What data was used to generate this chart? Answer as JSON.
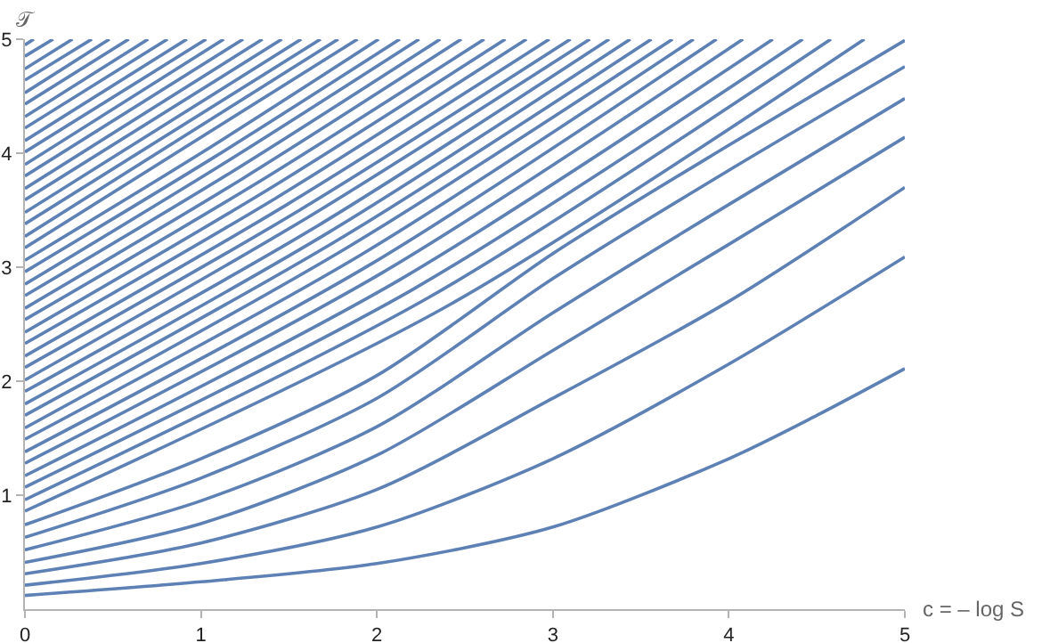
{
  "chart_data": {
    "type": "line",
    "xlabel": "c = – log S",
    "ylabel": "𝒯",
    "xlim": [
      0,
      5
    ],
    "ylim": [
      0,
      5
    ],
    "xticks": [
      0,
      1,
      2,
      3,
      4,
      5
    ],
    "yticks": [
      1,
      2,
      3,
      4,
      5
    ],
    "grid": false,
    "marker": "none",
    "line_style": "solid",
    "series": [
      {
        "color": "#5e81b5",
        "x": [
          0,
          1,
          2,
          3,
          4,
          4.5,
          5
        ],
        "values": [
          0.12,
          0.24,
          0.4,
          0.72,
          1.32,
          1.7,
          2.11
        ]
      },
      {
        "color": "#5e81b5",
        "x": [
          0,
          1,
          2,
          3,
          4,
          5
        ],
        "values": [
          0.21,
          0.4,
          0.72,
          1.32,
          2.15,
          3.09
        ]
      },
      {
        "color": "#5e81b5",
        "x": [
          0,
          1,
          2,
          3,
          4,
          5
        ],
        "values": [
          0.31,
          0.58,
          1.05,
          1.85,
          2.7,
          3.7
        ]
      },
      {
        "color": "#5e81b5",
        "x": [
          0,
          1,
          2,
          3,
          4,
          5
        ],
        "values": [
          0.41,
          0.75,
          1.35,
          2.27,
          3.2,
          4.14
        ]
      },
      {
        "color": "#5e81b5",
        "x": [
          0,
          1,
          2,
          3,
          4,
          5
        ],
        "values": [
          0.52,
          0.95,
          1.6,
          2.6,
          3.55,
          4.48
        ]
      },
      {
        "color": "#5e81b5",
        "x": [
          0,
          1,
          2,
          3,
          4,
          5
        ],
        "values": [
          0.63,
          1.15,
          1.85,
          2.9,
          3.85,
          4.76
        ]
      },
      {
        "color": "#5e81b5",
        "x": [
          0,
          1,
          2,
          3,
          4,
          5
        ],
        "values": [
          0.74,
          1.32,
          2.05,
          3.12,
          4.07,
          4.99
        ]
      },
      {
        "color": "#5e81b5",
        "x": [
          0,
          2.39,
          4.77
        ],
        "values": [
          0.86,
          2.65,
          5
        ]
      },
      {
        "color": "#5e81b5",
        "x": [
          0,
          2.29,
          4.58
        ],
        "values": [
          0.96,
          2.73,
          5
        ]
      },
      {
        "color": "#5e81b5",
        "x": [
          0,
          2.21,
          4.42
        ],
        "values": [
          1.07,
          2.81,
          5
        ]
      },
      {
        "color": "#5e81b5",
        "x": [
          0,
          2.13,
          4.25
        ],
        "values": [
          1.17,
          2.89,
          5
        ]
      },
      {
        "color": "#5e81b5",
        "x": [
          0,
          2.04,
          4.08
        ],
        "values": [
          1.28,
          2.96,
          5
        ]
      },
      {
        "color": "#5e81b5",
        "x": [
          0,
          1.97,
          3.93
        ],
        "values": [
          1.38,
          3.03,
          5
        ]
      },
      {
        "color": "#5e81b5",
        "x": [
          0,
          1.9,
          3.8
        ],
        "values": [
          1.49,
          3.1,
          5
        ]
      },
      {
        "color": "#5e81b5",
        "x": [
          0,
          1.84,
          3.68
        ],
        "values": [
          1.59,
          3.18,
          5
        ]
      },
      {
        "color": "#5e81b5",
        "x": [
          0,
          1.78,
          3.56
        ],
        "values": [
          1.7,
          3.24,
          5
        ]
      },
      {
        "color": "#5e81b5",
        "x": [
          0,
          1.72,
          3.44
        ],
        "values": [
          1.8,
          3.3,
          5
        ]
      },
      {
        "color": "#5e81b5",
        "x": [
          0,
          1.66,
          3.32
        ],
        "values": [
          1.91,
          3.36,
          5
        ]
      },
      {
        "color": "#5e81b5",
        "x": [
          0,
          1.6,
          3.21
        ],
        "values": [
          2.01,
          3.43,
          5
        ]
      },
      {
        "color": "#5e81b5",
        "x": [
          0,
          1.55,
          3.1
        ],
        "values": [
          2.12,
          3.49,
          5
        ]
      },
      {
        "color": "#5e81b5",
        "x": [
          0,
          1.49,
          2.98
        ],
        "values": [
          2.22,
          3.55,
          5
        ]
      },
      {
        "color": "#5e81b5",
        "x": [
          0,
          1.43,
          2.85
        ],
        "values": [
          2.33,
          3.61,
          5
        ]
      },
      {
        "color": "#5e81b5",
        "x": [
          0,
          1.37,
          2.73
        ],
        "values": [
          2.43,
          3.67,
          5
        ]
      },
      {
        "color": "#5e81b5",
        "x": [
          0,
          1.31,
          2.61
        ],
        "values": [
          2.54,
          3.73,
          5
        ]
      },
      {
        "color": "#5e81b5",
        "x": [
          0,
          1.24,
          2.48
        ],
        "values": [
          2.64,
          3.78,
          5
        ]
      },
      {
        "color": "#5e81b5",
        "x": [
          0,
          1.18,
          2.36
        ],
        "values": [
          2.75,
          3.84,
          5
        ]
      },
      {
        "color": "#5e81b5",
        "x": [
          0,
          1.12,
          2.24
        ],
        "values": [
          2.85,
          3.9,
          5
        ]
      },
      {
        "color": "#5e81b5",
        "x": [
          0,
          1.07,
          2.13
        ],
        "values": [
          2.96,
          3.96,
          5
        ]
      },
      {
        "color": "#5e81b5",
        "x": [
          0,
          1.01,
          2.01
        ],
        "values": [
          3.06,
          4.01,
          5
        ]
      },
      {
        "color": "#5e81b5",
        "x": [
          0,
          1.89
        ],
        "values": [
          3.17,
          5
        ]
      },
      {
        "color": "#5e81b5",
        "x": [
          0,
          1.78
        ],
        "values": [
          3.27,
          5
        ]
      },
      {
        "color": "#5e81b5",
        "x": [
          0,
          1.68
        ],
        "values": [
          3.38,
          5
        ]
      },
      {
        "color": "#5e81b5",
        "x": [
          0,
          1.57
        ],
        "values": [
          3.48,
          5
        ]
      },
      {
        "color": "#5e81b5",
        "x": [
          0,
          1.46
        ],
        "values": [
          3.59,
          5
        ]
      },
      {
        "color": "#5e81b5",
        "x": [
          0,
          1.35
        ],
        "values": [
          3.69,
          5
        ]
      },
      {
        "color": "#5e81b5",
        "x": [
          0,
          1.24
        ],
        "values": [
          3.8,
          5
        ]
      },
      {
        "color": "#5e81b5",
        "x": [
          0,
          1.13
        ],
        "values": [
          3.9,
          5
        ]
      },
      {
        "color": "#5e81b5",
        "x": [
          0,
          1.03
        ],
        "values": [
          4.01,
          5
        ]
      },
      {
        "color": "#5e81b5",
        "x": [
          0,
          0.92
        ],
        "values": [
          4.11,
          5
        ]
      },
      {
        "color": "#5e81b5",
        "x": [
          0,
          0.81
        ],
        "values": [
          4.22,
          5
        ]
      },
      {
        "color": "#5e81b5",
        "x": [
          0,
          0.7
        ],
        "values": [
          4.32,
          5
        ]
      },
      {
        "color": "#5e81b5",
        "x": [
          0,
          0.59
        ],
        "values": [
          4.43,
          5
        ]
      },
      {
        "color": "#5e81b5",
        "x": [
          0,
          0.48
        ],
        "values": [
          4.53,
          5
        ]
      },
      {
        "color": "#5e81b5",
        "x": [
          0,
          0.38
        ],
        "values": [
          4.64,
          5
        ]
      },
      {
        "color": "#5e81b5",
        "x": [
          0,
          0.27
        ],
        "values": [
          4.74,
          5
        ]
      },
      {
        "color": "#5e81b5",
        "x": [
          0,
          0.16
        ],
        "values": [
          4.85,
          5
        ]
      },
      {
        "color": "#5e81b5",
        "x": [
          0,
          0.05
        ],
        "values": [
          4.95,
          5
        ]
      }
    ]
  }
}
